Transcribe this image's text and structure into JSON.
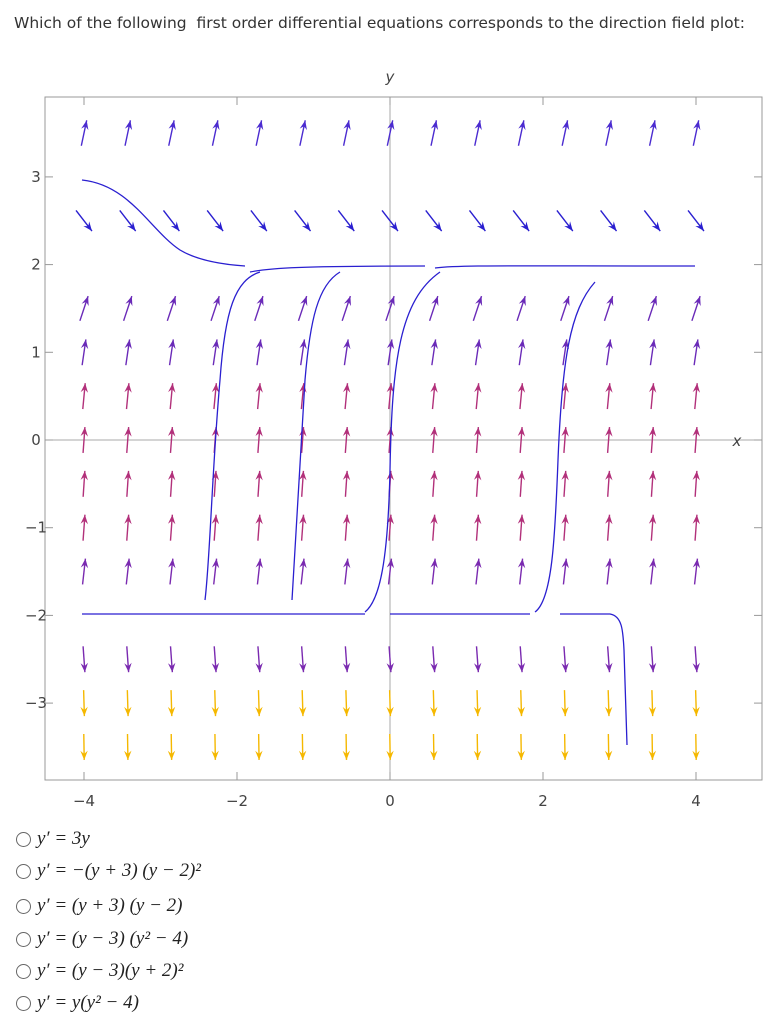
{
  "question": "Which of the following  first order differential equations corresponds to the direction field plot:",
  "plot": {
    "x_label": "x",
    "y_label": "y",
    "xticks": [
      "−4",
      "−2",
      "0",
      "2",
      "4"
    ],
    "yticks": [
      "3",
      "2",
      "1",
      "0",
      "−1",
      "−2",
      "−3"
    ]
  },
  "options": [
    "y′ = 3y",
    "y′ = −(y + 3) (y − 2)²",
    "y′ = (y + 3) (y − 2)",
    "y′ = (y − 3) (y² − 4)",
    "y′ = (y − 3)(y + 2)²",
    "y′ = y(y² − 4)"
  ]
}
